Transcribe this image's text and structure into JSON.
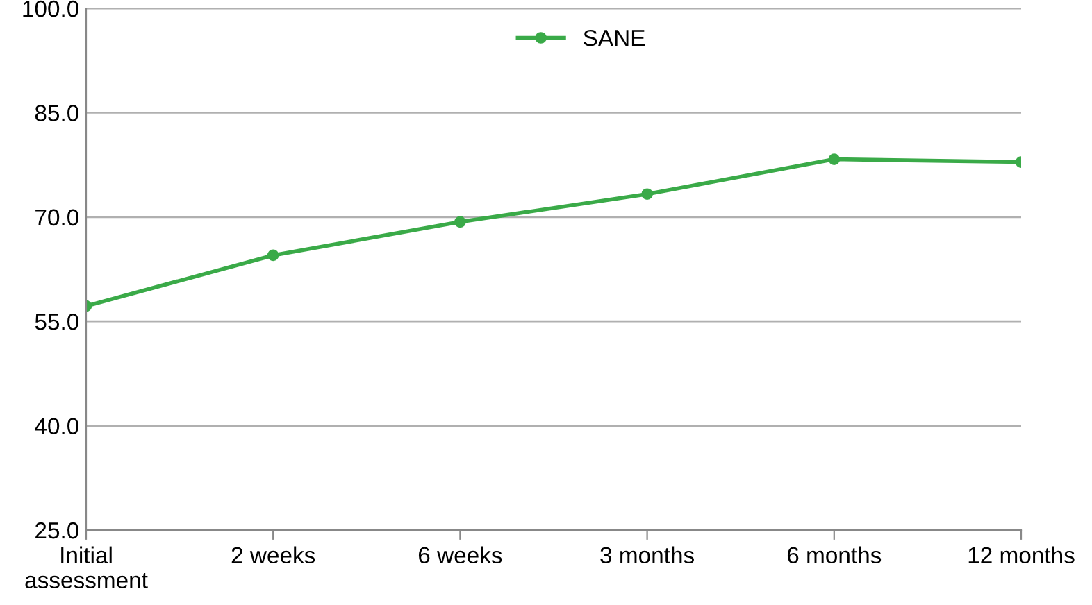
{
  "chart_data": {
    "type": "line",
    "categories": [
      "Initial\nassessment",
      "2 weeks",
      "6 weeks",
      "3 months",
      "6 months",
      "12 months"
    ],
    "series": [
      {
        "name": "SANE",
        "color": "#3aaa48",
        "values": [
          57.2,
          64.5,
          69.3,
          73.3,
          78.3,
          77.9
        ]
      }
    ],
    "ylim": [
      25,
      100
    ],
    "yticks": [
      {
        "value": 25,
        "label": "25.0"
      },
      {
        "value": 40,
        "label": "40.0"
      },
      {
        "value": 55,
        "label": "55.0"
      },
      {
        "value": 70,
        "label": "70.0"
      },
      {
        "value": 85,
        "label": "85.0"
      },
      {
        "value": 100,
        "label": "100.0"
      }
    ],
    "grid": "y",
    "legend": "top",
    "marker": "circle",
    "line_style": "solid"
  }
}
